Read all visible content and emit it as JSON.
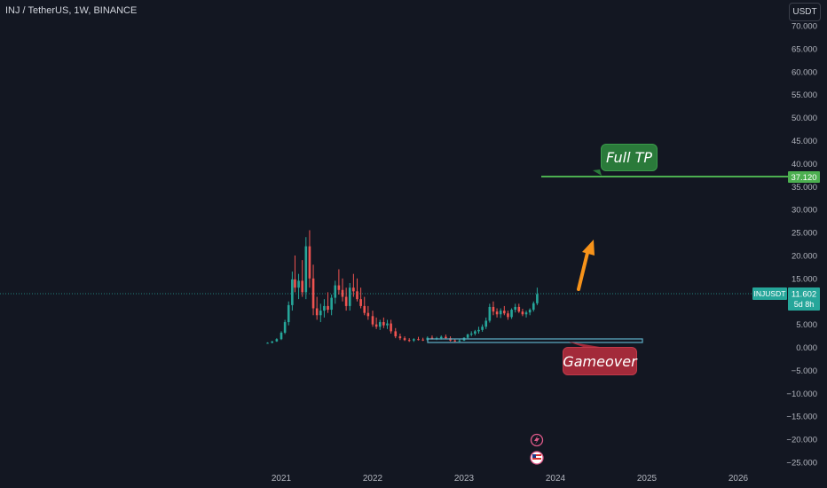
{
  "header": {
    "symbol_title": "INJ / TetherUS, 1W, BINANCE",
    "currency_button": "USDT"
  },
  "price_axis": {
    "ticks": [
      "70.000",
      "65.000",
      "60.000",
      "55.000",
      "50.000",
      "45.000",
      "40.000",
      "35.000",
      "30.000",
      "25.000",
      "20.000",
      "15.000",
      "10.000",
      "5.000",
      "0.000",
      "−5.000",
      "−10.000",
      "−15.000",
      "−20.000",
      "−25.000"
    ]
  },
  "time_axis": {
    "ticks": [
      "2021",
      "2022",
      "2023",
      "2024",
      "2025",
      "2026"
    ]
  },
  "labels": {
    "tp_price": "37.120",
    "symbol_badge": "INJUSDT",
    "last_price": "11.602",
    "countdown": "5d 8h"
  },
  "annotations": {
    "full_tp": "Full TP",
    "gameover": "Gameover"
  },
  "colors": {
    "background": "#131722",
    "up": "#26a69a",
    "down": "#ef5350",
    "tp_line": "#4caf50",
    "support_line": "#5fb0c7",
    "arrow": "#f7931a"
  },
  "icons": {
    "event_1": "lightning-icon",
    "event_2": "flag-icon"
  },
  "chart_data": {
    "type": "candlestick",
    "ylim": [
      -25,
      70
    ],
    "xlim": [
      2021,
      2026
    ],
    "grid": false,
    "horizontal_lines": [
      {
        "label": "Full TP",
        "y": 37.12
      },
      {
        "label": "Gameover",
        "y": 1.3
      }
    ],
    "last_price": 11.602,
    "candles": [
      [
        2020.85,
        1.0,
        1.1,
        0.9,
        1.0
      ],
      [
        2020.9,
        1.0,
        1.4,
        0.9,
        1.3
      ],
      [
        2020.95,
        1.3,
        2.0,
        1.2,
        1.8
      ],
      [
        2021.0,
        1.8,
        3.5,
        1.6,
        3.2
      ],
      [
        2021.04,
        3.2,
        6.0,
        2.9,
        5.5
      ],
      [
        2021.08,
        5.5,
        10.0,
        4.8,
        9.2
      ],
      [
        2021.12,
        9.2,
        16.5,
        8.0,
        14.8
      ],
      [
        2021.15,
        14.8,
        20.0,
        12.0,
        13.0
      ],
      [
        2021.19,
        13.0,
        16.0,
        10.5,
        14.5
      ],
      [
        2021.23,
        14.5,
        19.0,
        11.0,
        12.0
      ],
      [
        2021.27,
        12.0,
        24.0,
        10.5,
        22.0
      ],
      [
        2021.31,
        22.0,
        25.5,
        13.0,
        15.0
      ],
      [
        2021.35,
        15.0,
        18.0,
        7.0,
        8.5
      ],
      [
        2021.39,
        8.5,
        11.0,
        6.0,
        7.0
      ],
      [
        2021.43,
        7.0,
        9.5,
        5.5,
        8.0
      ],
      [
        2021.47,
        8.0,
        10.5,
        6.5,
        9.0
      ],
      [
        2021.51,
        9.0,
        12.0,
        7.5,
        8.2
      ],
      [
        2021.55,
        8.2,
        11.5,
        7.0,
        10.8
      ],
      [
        2021.59,
        10.8,
        14.5,
        9.5,
        13.5
      ],
      [
        2021.63,
        13.5,
        17.0,
        11.5,
        12.5
      ],
      [
        2021.67,
        12.5,
        15.0,
        10.0,
        11.0
      ],
      [
        2021.71,
        11.0,
        13.0,
        8.0,
        9.0
      ],
      [
        2021.75,
        9.0,
        14.0,
        8.0,
        13.0
      ],
      [
        2021.79,
        13.0,
        16.0,
        11.0,
        12.2
      ],
      [
        2021.83,
        12.2,
        15.0,
        10.0,
        10.5
      ],
      [
        2021.87,
        10.5,
        13.0,
        8.5,
        9.0
      ],
      [
        2021.91,
        9.0,
        11.0,
        7.0,
        7.5
      ],
      [
        2021.95,
        7.5,
        9.0,
        6.0,
        6.8
      ],
      [
        2022.0,
        6.8,
        8.0,
        4.5,
        5.0
      ],
      [
        2022.04,
        5.0,
        6.5,
        4.0,
        4.5
      ],
      [
        2022.08,
        4.5,
        6.0,
        3.8,
        5.5
      ],
      [
        2022.12,
        5.5,
        6.5,
        4.2,
        4.8
      ],
      [
        2022.16,
        4.8,
        6.0,
        4.0,
        5.2
      ],
      [
        2022.2,
        5.2,
        6.0,
        3.0,
        3.5
      ],
      [
        2022.25,
        3.5,
        4.2,
        2.0,
        2.4
      ],
      [
        2022.3,
        2.4,
        3.0,
        1.6,
        2.0
      ],
      [
        2022.35,
        2.0,
        2.4,
        1.4,
        1.6
      ],
      [
        2022.4,
        1.6,
        2.0,
        1.2,
        1.5
      ],
      [
        2022.45,
        1.5,
        2.0,
        1.2,
        1.8
      ],
      [
        2022.5,
        1.8,
        2.3,
        1.5,
        1.7
      ],
      [
        2022.55,
        1.7,
        2.1,
        1.4,
        1.6
      ],
      [
        2022.6,
        1.6,
        2.4,
        1.4,
        2.1
      ],
      [
        2022.65,
        2.1,
        2.6,
        1.7,
        1.9
      ],
      [
        2022.7,
        1.9,
        2.3,
        1.6,
        2.0
      ],
      [
        2022.75,
        2.0,
        2.6,
        1.7,
        2.3
      ],
      [
        2022.8,
        2.3,
        2.8,
        1.8,
        2.0
      ],
      [
        2022.85,
        2.0,
        2.4,
        1.3,
        1.5
      ],
      [
        2022.9,
        1.5,
        1.9,
        1.2,
        1.4
      ],
      [
        2022.95,
        1.4,
        1.8,
        1.2,
        1.5
      ],
      [
        2023.0,
        1.5,
        2.2,
        1.4,
        2.1
      ],
      [
        2023.04,
        2.1,
        3.0,
        1.9,
        2.8
      ],
      [
        2023.08,
        2.8,
        3.5,
        2.4,
        3.0
      ],
      [
        2023.12,
        3.0,
        3.8,
        2.6,
        3.5
      ],
      [
        2023.16,
        3.5,
        4.5,
        3.0,
        3.8
      ],
      [
        2023.2,
        3.8,
        5.0,
        3.4,
        4.5
      ],
      [
        2023.24,
        4.5,
        6.5,
        4.0,
        5.8
      ],
      [
        2023.28,
        5.8,
        9.5,
        5.4,
        8.8
      ],
      [
        2023.32,
        8.8,
        10.0,
        7.0,
        7.8
      ],
      [
        2023.36,
        7.8,
        8.5,
        6.5,
        7.2
      ],
      [
        2023.4,
        7.2,
        8.5,
        6.4,
        8.0
      ],
      [
        2023.44,
        8.0,
        9.0,
        7.0,
        7.4
      ],
      [
        2023.48,
        7.4,
        8.0,
        6.0,
        6.6
      ],
      [
        2023.52,
        6.6,
        8.5,
        6.2,
        8.2
      ],
      [
        2023.56,
        8.2,
        9.5,
        7.6,
        8.8
      ],
      [
        2023.6,
        8.8,
        9.5,
        7.5,
        7.8
      ],
      [
        2023.64,
        7.8,
        8.4,
        6.8,
        7.2
      ],
      [
        2023.68,
        7.2,
        8.0,
        6.5,
        7.6
      ],
      [
        2023.72,
        7.6,
        8.5,
        7.0,
        8.2
      ],
      [
        2023.76,
        8.2,
        10.0,
        7.8,
        9.6
      ],
      [
        2023.8,
        9.6,
        13.0,
        9.2,
        11.602
      ]
    ]
  }
}
